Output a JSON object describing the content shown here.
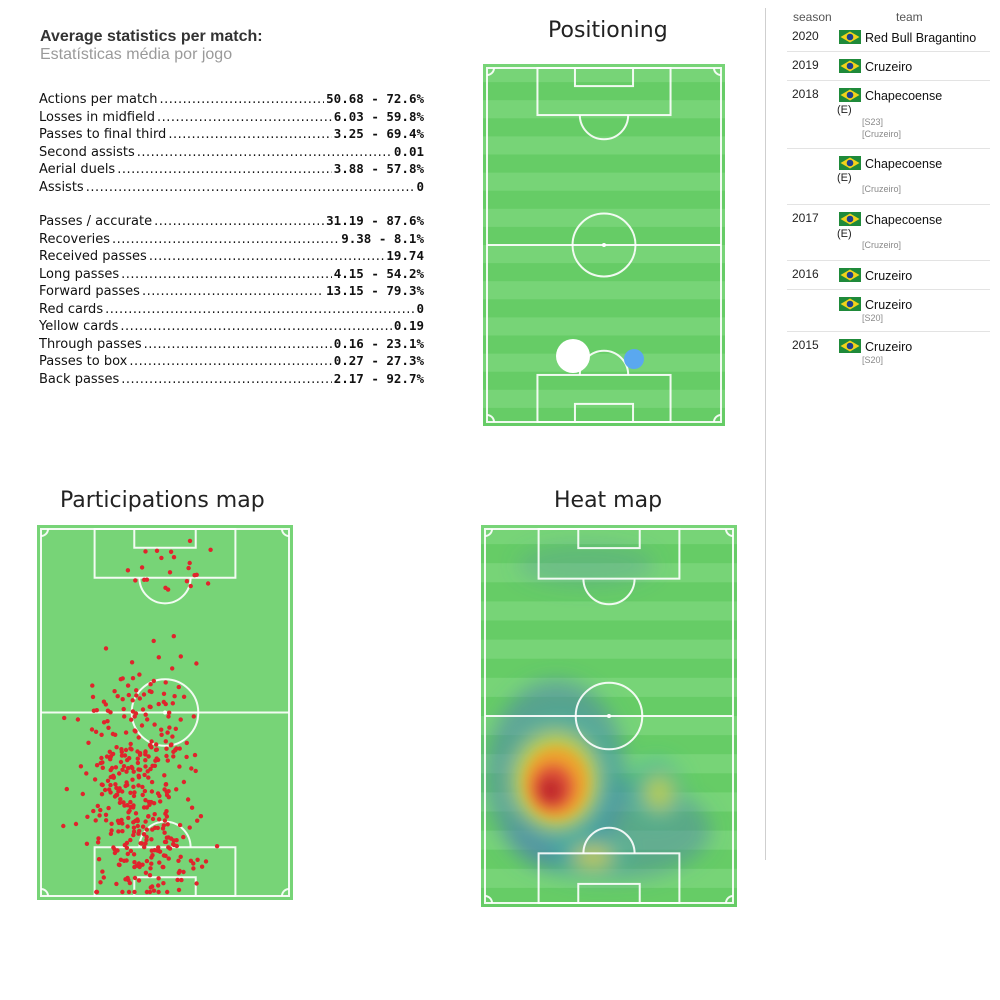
{
  "stats": {
    "title": "Average statistics per match:",
    "subtitle": "Estatísticas média por jogo",
    "group1": [
      {
        "label": "Actions per match",
        "value": "50.68 - 72.6%"
      },
      {
        "label": "Losses in midfield",
        "value": "6.03 - 59.8%"
      },
      {
        "label": "Passes to final third",
        "value": "3.25 - 69.4%"
      },
      {
        "label": "Second assists",
        "value": "0.01"
      },
      {
        "label": "Aerial duels",
        "value": "3.88 - 57.8%"
      },
      {
        "label": "Assists",
        "value": "0"
      }
    ],
    "group2": [
      {
        "label": "Passes / accurate",
        "value": "31.19 - 87.6%"
      },
      {
        "label": "Recoveries",
        "value": "9.38 - 8.1%"
      },
      {
        "label": "Received passes",
        "value": "19.74"
      },
      {
        "label": "Long passes",
        "value": "4.15 - 54.2%"
      },
      {
        "label": "Forward passes",
        "value": "13.15 - 79.3%"
      },
      {
        "label": "Red cards",
        "value": "0"
      },
      {
        "label": "Yellow cards",
        "value": "0.19"
      },
      {
        "label": "Through passes",
        "value": "0.16 - 23.1%"
      },
      {
        "label": "Passes to box",
        "value": "0.27 - 27.3%"
      },
      {
        "label": "Back passes",
        "value": "2.17 - 92.7%"
      }
    ]
  },
  "positioning": {
    "title": "Positioning"
  },
  "participations": {
    "title": "Participations map"
  },
  "heatmap": {
    "title": "Heat map"
  },
  "career": {
    "season_header": "season",
    "team_header": "team",
    "rows": [
      {
        "season": "2020",
        "team": "Red Bull Bragantino",
        "flag": "brazil-flag"
      },
      {
        "season": "2019",
        "team": "Cruzeiro",
        "flag": "brazil-flag"
      },
      {
        "season": "2018",
        "team": "Chapecoense",
        "flag": "brazil-flag",
        "loan": "(E)",
        "notes": [
          "[S23]",
          "[Cruzeiro]"
        ]
      },
      {
        "season": "",
        "team": "Chapecoense",
        "flag": "brazil-flag",
        "loan": "(E)",
        "notes": [
          "[Cruzeiro]"
        ]
      },
      {
        "season": "2017",
        "team": "Chapecoense",
        "flag": "brazil-flag",
        "loan": "(E)",
        "notes": [
          "[Cruzeiro]"
        ]
      },
      {
        "season": "2016",
        "team": "Cruzeiro",
        "flag": "brazil-flag"
      },
      {
        "season": "",
        "team": "Cruzeiro",
        "flag": "brazil-flag",
        "notes": [
          "[S20]"
        ]
      },
      {
        "season": "2015",
        "team": "Cruzeiro",
        "flag": "brazil-flag",
        "notes": [
          "[S20]"
        ]
      }
    ]
  },
  "colors": {
    "pitch_green": "#66cc66",
    "pitch_stripe": "#77d477",
    "participation_dot": "#e0242c",
    "position_main": "#ffffff",
    "position_secondary": "#5aa8ef"
  }
}
